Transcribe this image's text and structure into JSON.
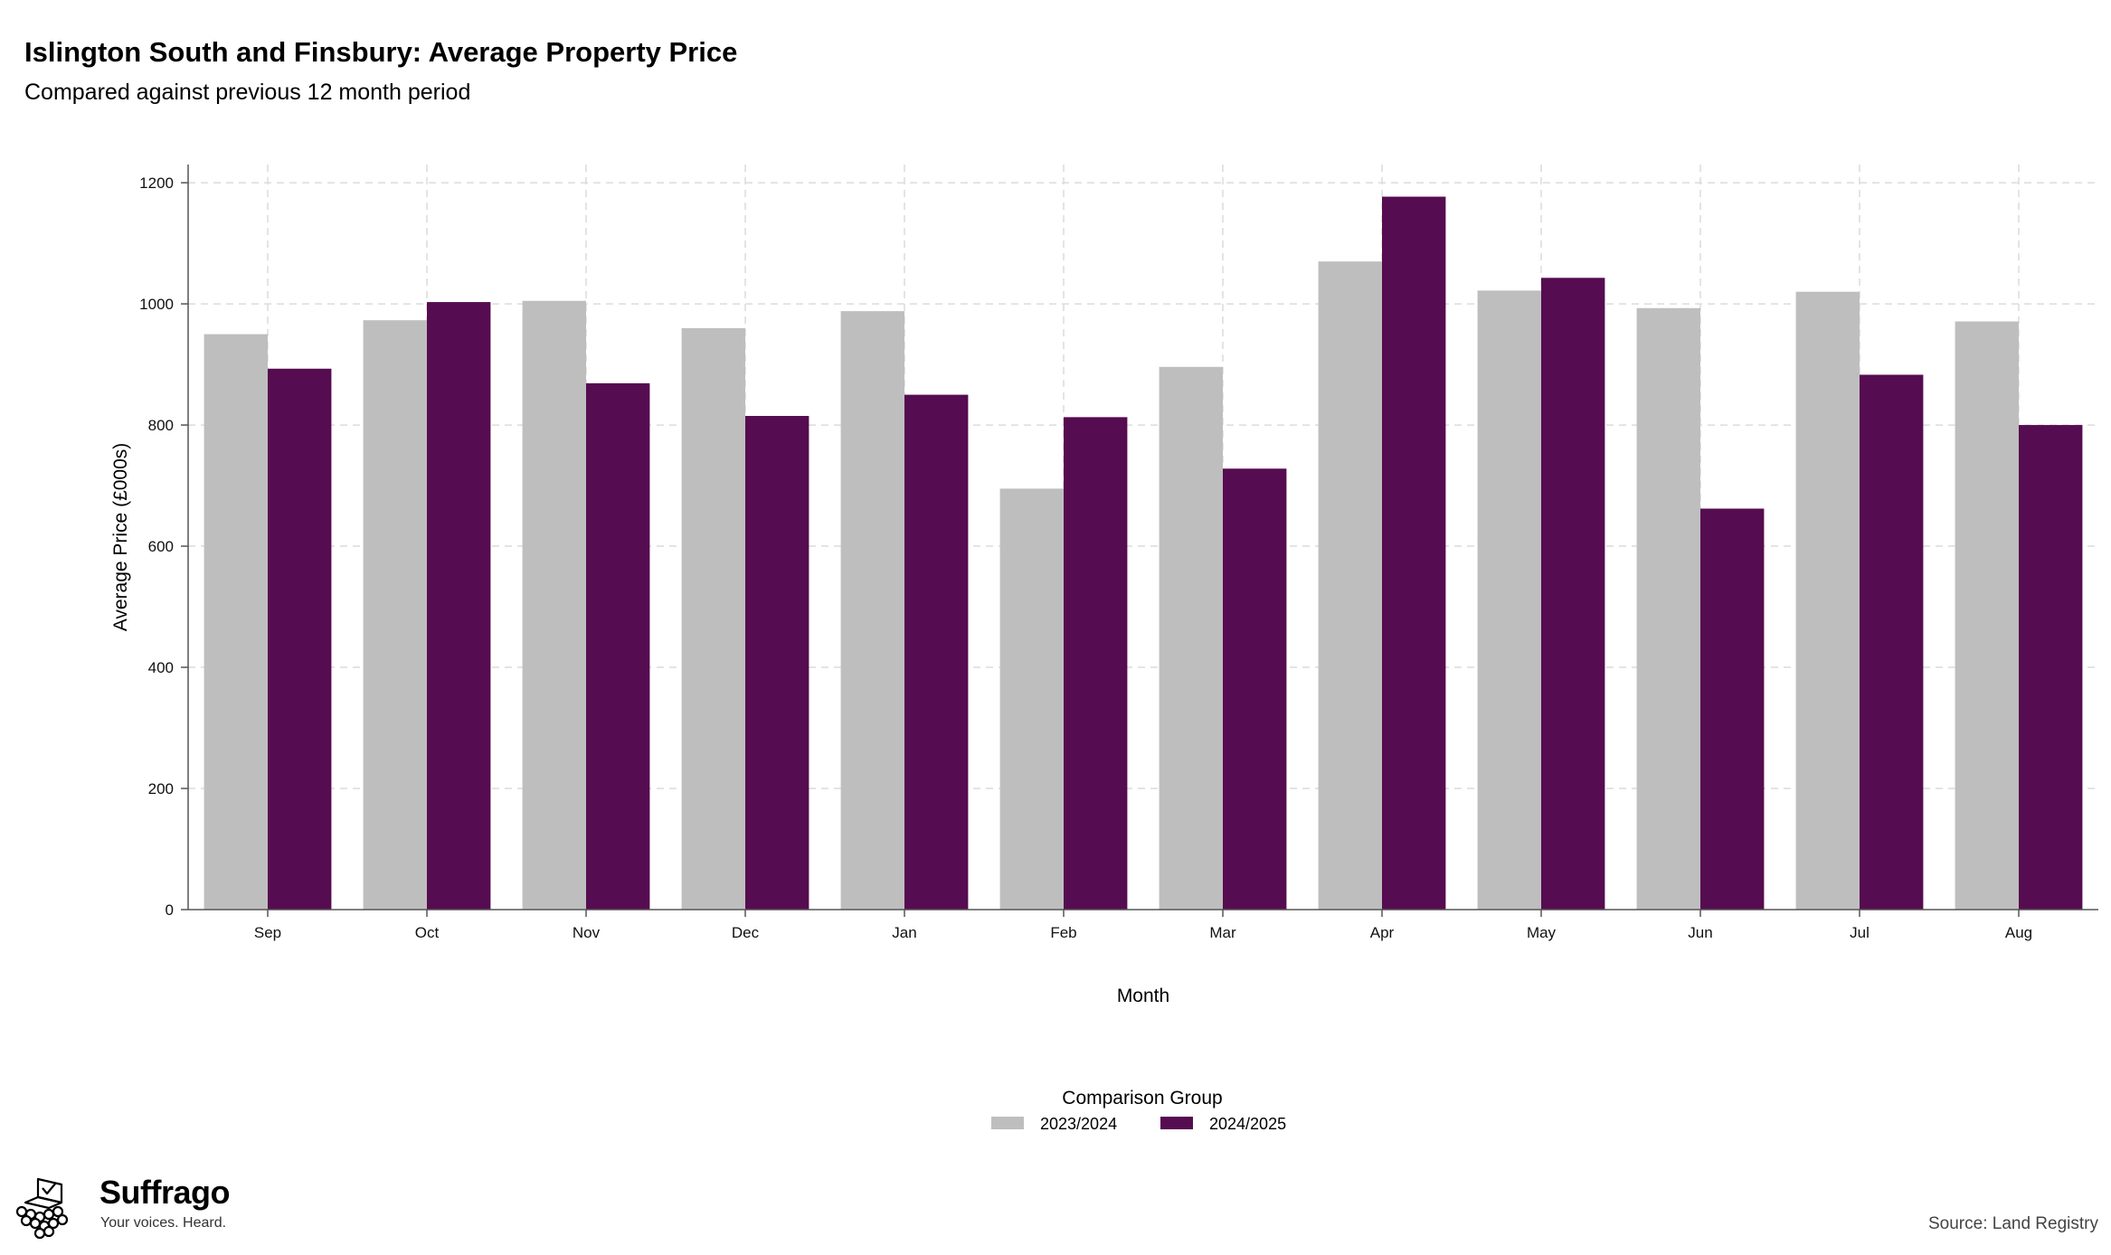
{
  "header": {
    "title": "Islington South and Finsbury: Average Property Price",
    "subtitle": "Compared against previous 12 month period"
  },
  "brand": {
    "name": "Suffrago",
    "tagline": "Your voices. Heard.",
    "icon": "ballot-box-icon"
  },
  "footer": {
    "source": "Source: Land Registry"
  },
  "colors": {
    "series_2023_2024": "#bebebe",
    "series_2024_2025": "#560c50",
    "grid": "#dcdcdc"
  },
  "chart_data": {
    "type": "bar",
    "title": "Islington South and Finsbury: Average Property Price",
    "subtitle": "Compared against previous 12 month period",
    "xlabel": "Month",
    "ylabel": "Average Price (£000s)",
    "categories": [
      "Sep",
      "Oct",
      "Nov",
      "Dec",
      "Jan",
      "Feb",
      "Mar",
      "Apr",
      "May",
      "Jun",
      "Jul",
      "Aug"
    ],
    "series": [
      {
        "name": "2023/2024",
        "color": "#bebebe",
        "values": [
          950,
          973,
          1005,
          960,
          988,
          695,
          896,
          1070,
          1022,
          993,
          1020,
          971
        ]
      },
      {
        "name": "2024/2025",
        "color": "#560c50",
        "values": [
          893,
          1003,
          869,
          815,
          850,
          813,
          728,
          1177,
          1043,
          662,
          883,
          800
        ]
      }
    ],
    "ylim": [
      0,
      1230
    ],
    "yticks": [
      "0",
      "200",
      "400",
      "600",
      "800",
      "1000",
      "1200"
    ],
    "legend": {
      "title": "Comparison Group",
      "position": "bottom-center"
    },
    "grid": true
  }
}
